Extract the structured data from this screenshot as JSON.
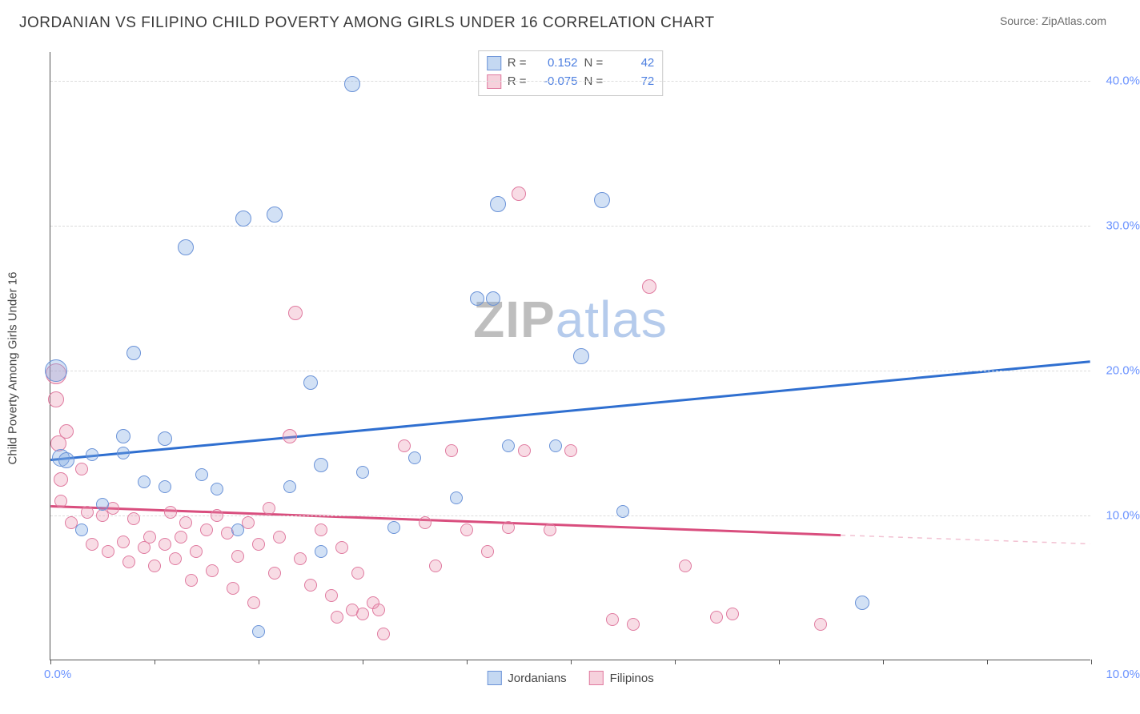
{
  "header": {
    "title": "JORDANIAN VS FILIPINO CHILD POVERTY AMONG GIRLS UNDER 16 CORRELATION CHART",
    "source": "Source: ZipAtlas.com"
  },
  "watermark": {
    "part1": "ZIP",
    "part2": "atlas"
  },
  "chart": {
    "type": "scatter",
    "y_axis_title": "Child Poverty Among Girls Under 16",
    "background_color": "#ffffff",
    "grid_color": "#dcdcdc",
    "axis_color": "#555555",
    "xlim": [
      0,
      10
    ],
    "ylim": [
      0,
      42
    ],
    "x_ticks": [
      0,
      1,
      2,
      3,
      4,
      5,
      6,
      7,
      8,
      9,
      10
    ],
    "x_tick_labels_shown": {
      "left": "0.0%",
      "right": "10.0%"
    },
    "y_grid": [
      {
        "v": 10,
        "label": "10.0%"
      },
      {
        "v": 20,
        "label": "20.0%"
      },
      {
        "v": 30,
        "label": "30.0%"
      },
      {
        "v": 40,
        "label": "40.0%"
      }
    ],
    "y_label_color": "#6b93ff",
    "x_label_color": "#6b93ff",
    "legend": {
      "series_a_name": "Jordanians",
      "series_b_name": "Filipinos"
    },
    "stats": {
      "r_label": "R =",
      "n_label": "N =",
      "series_a": {
        "r": "0.152",
        "n": "42"
      },
      "series_b": {
        "r": "-0.075",
        "n": "72"
      }
    },
    "series_a": {
      "color_fill": "rgba(125,168,227,0.35)",
      "color_stroke": "#6b93d8",
      "trend_color": "#2f6fd0",
      "trend_width": 3,
      "trend": {
        "x1": 0,
        "y1": 13.8,
        "x2": 10,
        "y2": 20.6
      },
      "points": [
        {
          "x": 0.05,
          "y": 20.0,
          "r": 14
        },
        {
          "x": 0.1,
          "y": 14.0,
          "r": 11
        },
        {
          "x": 0.15,
          "y": 13.8,
          "r": 10
        },
        {
          "x": 0.3,
          "y": 9.0,
          "r": 8
        },
        {
          "x": 0.4,
          "y": 14.2,
          "r": 8
        },
        {
          "x": 0.5,
          "y": 10.8,
          "r": 8
        },
        {
          "x": 0.7,
          "y": 15.5,
          "r": 9
        },
        {
          "x": 0.7,
          "y": 14.3,
          "r": 8
        },
        {
          "x": 0.8,
          "y": 21.2,
          "r": 9
        },
        {
          "x": 0.9,
          "y": 12.3,
          "r": 8
        },
        {
          "x": 1.1,
          "y": 12.0,
          "r": 8
        },
        {
          "x": 1.1,
          "y": 15.3,
          "r": 9
        },
        {
          "x": 1.3,
          "y": 28.5,
          "r": 10
        },
        {
          "x": 1.45,
          "y": 12.8,
          "r": 8
        },
        {
          "x": 1.6,
          "y": 11.8,
          "r": 8
        },
        {
          "x": 1.8,
          "y": 9.0,
          "r": 8
        },
        {
          "x": 1.85,
          "y": 30.5,
          "r": 10
        },
        {
          "x": 2.0,
          "y": 2.0,
          "r": 8
        },
        {
          "x": 2.15,
          "y": 30.8,
          "r": 10
        },
        {
          "x": 2.3,
          "y": 12.0,
          "r": 8
        },
        {
          "x": 2.5,
          "y": 19.2,
          "r": 9
        },
        {
          "x": 2.6,
          "y": 13.5,
          "r": 9
        },
        {
          "x": 2.6,
          "y": 7.5,
          "r": 8
        },
        {
          "x": 2.9,
          "y": 39.8,
          "r": 10
        },
        {
          "x": 3.0,
          "y": 13.0,
          "r": 8
        },
        {
          "x": 3.3,
          "y": 9.2,
          "r": 8
        },
        {
          "x": 3.5,
          "y": 14.0,
          "r": 8
        },
        {
          "x": 3.9,
          "y": 11.2,
          "r": 8
        },
        {
          "x": 4.1,
          "y": 25.0,
          "r": 9
        },
        {
          "x": 4.25,
          "y": 25.0,
          "r": 9
        },
        {
          "x": 4.3,
          "y": 31.5,
          "r": 10
        },
        {
          "x": 4.4,
          "y": 14.8,
          "r": 8
        },
        {
          "x": 5.1,
          "y": 21.0,
          "r": 10
        },
        {
          "x": 4.85,
          "y": 14.8,
          "r": 8
        },
        {
          "x": 5.3,
          "y": 31.8,
          "r": 10
        },
        {
          "x": 5.5,
          "y": 10.3,
          "r": 8
        },
        {
          "x": 7.8,
          "y": 4.0,
          "r": 9
        }
      ]
    },
    "series_b": {
      "color_fill": "rgba(232,140,168,0.30)",
      "color_stroke": "#e07ba0",
      "trend_color": "#d94e7e",
      "trend_width": 3,
      "trend_solid": {
        "x1": 0,
        "y1": 10.6,
        "x2": 7.6,
        "y2": 8.6
      },
      "trend_dashed": {
        "x1": 7.6,
        "y1": 8.6,
        "x2": 10,
        "y2": 8.0
      },
      "points": [
        {
          "x": 0.05,
          "y": 19.8,
          "r": 13
        },
        {
          "x": 0.05,
          "y": 18.0,
          "r": 10
        },
        {
          "x": 0.08,
          "y": 15.0,
          "r": 10
        },
        {
          "x": 0.1,
          "y": 12.5,
          "r": 9
        },
        {
          "x": 0.1,
          "y": 11.0,
          "r": 8
        },
        {
          "x": 0.15,
          "y": 15.8,
          "r": 9
        },
        {
          "x": 0.2,
          "y": 9.5,
          "r": 8
        },
        {
          "x": 0.3,
          "y": 13.2,
          "r": 8
        },
        {
          "x": 0.35,
          "y": 10.2,
          "r": 8
        },
        {
          "x": 0.4,
          "y": 8.0,
          "r": 8
        },
        {
          "x": 0.5,
          "y": 10.0,
          "r": 8
        },
        {
          "x": 0.55,
          "y": 7.5,
          "r": 8
        },
        {
          "x": 0.6,
          "y": 10.5,
          "r": 8
        },
        {
          "x": 0.7,
          "y": 8.2,
          "r": 8
        },
        {
          "x": 0.75,
          "y": 6.8,
          "r": 8
        },
        {
          "x": 0.8,
          "y": 9.8,
          "r": 8
        },
        {
          "x": 0.9,
          "y": 7.8,
          "r": 8
        },
        {
          "x": 0.95,
          "y": 8.5,
          "r": 8
        },
        {
          "x": 1.0,
          "y": 6.5,
          "r": 8
        },
        {
          "x": 1.1,
          "y": 8.0,
          "r": 8
        },
        {
          "x": 1.15,
          "y": 10.2,
          "r": 8
        },
        {
          "x": 1.2,
          "y": 7.0,
          "r": 8
        },
        {
          "x": 1.25,
          "y": 8.5,
          "r": 8
        },
        {
          "x": 1.3,
          "y": 9.5,
          "r": 8
        },
        {
          "x": 1.35,
          "y": 5.5,
          "r": 8
        },
        {
          "x": 1.4,
          "y": 7.5,
          "r": 8
        },
        {
          "x": 1.5,
          "y": 9.0,
          "r": 8
        },
        {
          "x": 1.55,
          "y": 6.2,
          "r": 8
        },
        {
          "x": 1.6,
          "y": 10.0,
          "r": 8
        },
        {
          "x": 1.7,
          "y": 8.8,
          "r": 8
        },
        {
          "x": 1.75,
          "y": 5.0,
          "r": 8
        },
        {
          "x": 1.8,
          "y": 7.2,
          "r": 8
        },
        {
          "x": 1.9,
          "y": 9.5,
          "r": 8
        },
        {
          "x": 1.95,
          "y": 4.0,
          "r": 8
        },
        {
          "x": 2.0,
          "y": 8.0,
          "r": 8
        },
        {
          "x": 2.1,
          "y": 10.5,
          "r": 8
        },
        {
          "x": 2.15,
          "y": 6.0,
          "r": 8
        },
        {
          "x": 2.2,
          "y": 8.5,
          "r": 8
        },
        {
          "x": 2.3,
          "y": 15.5,
          "r": 9
        },
        {
          "x": 2.35,
          "y": 24.0,
          "r": 9
        },
        {
          "x": 2.4,
          "y": 7.0,
          "r": 8
        },
        {
          "x": 2.5,
          "y": 5.2,
          "r": 8
        },
        {
          "x": 2.6,
          "y": 9.0,
          "r": 8
        },
        {
          "x": 2.7,
          "y": 4.5,
          "r": 8
        },
        {
          "x": 2.75,
          "y": 3.0,
          "r": 8
        },
        {
          "x": 2.8,
          "y": 7.8,
          "r": 8
        },
        {
          "x": 2.9,
          "y": 3.5,
          "r": 8
        },
        {
          "x": 2.95,
          "y": 6.0,
          "r": 8
        },
        {
          "x": 3.0,
          "y": 3.2,
          "r": 8
        },
        {
          "x": 3.1,
          "y": 4.0,
          "r": 8
        },
        {
          "x": 3.15,
          "y": 3.5,
          "r": 8
        },
        {
          "x": 3.2,
          "y": 1.8,
          "r": 8
        },
        {
          "x": 3.4,
          "y": 14.8,
          "r": 8
        },
        {
          "x": 3.6,
          "y": 9.5,
          "r": 8
        },
        {
          "x": 3.7,
          "y": 6.5,
          "r": 8
        },
        {
          "x": 3.85,
          "y": 14.5,
          "r": 8
        },
        {
          "x": 4.0,
          "y": 9.0,
          "r": 8
        },
        {
          "x": 4.2,
          "y": 7.5,
          "r": 8
        },
        {
          "x": 4.4,
          "y": 9.2,
          "r": 8
        },
        {
          "x": 4.5,
          "y": 32.2,
          "r": 9
        },
        {
          "x": 4.55,
          "y": 14.5,
          "r": 8
        },
        {
          "x": 4.8,
          "y": 9.0,
          "r": 8
        },
        {
          "x": 5.0,
          "y": 14.5,
          "r": 8
        },
        {
          "x": 5.4,
          "y": 2.8,
          "r": 8
        },
        {
          "x": 5.6,
          "y": 2.5,
          "r": 8
        },
        {
          "x": 5.75,
          "y": 25.8,
          "r": 9
        },
        {
          "x": 6.1,
          "y": 6.5,
          "r": 8
        },
        {
          "x": 6.4,
          "y": 3.0,
          "r": 8
        },
        {
          "x": 6.55,
          "y": 3.2,
          "r": 8
        },
        {
          "x": 7.4,
          "y": 2.5,
          "r": 8
        }
      ]
    }
  }
}
